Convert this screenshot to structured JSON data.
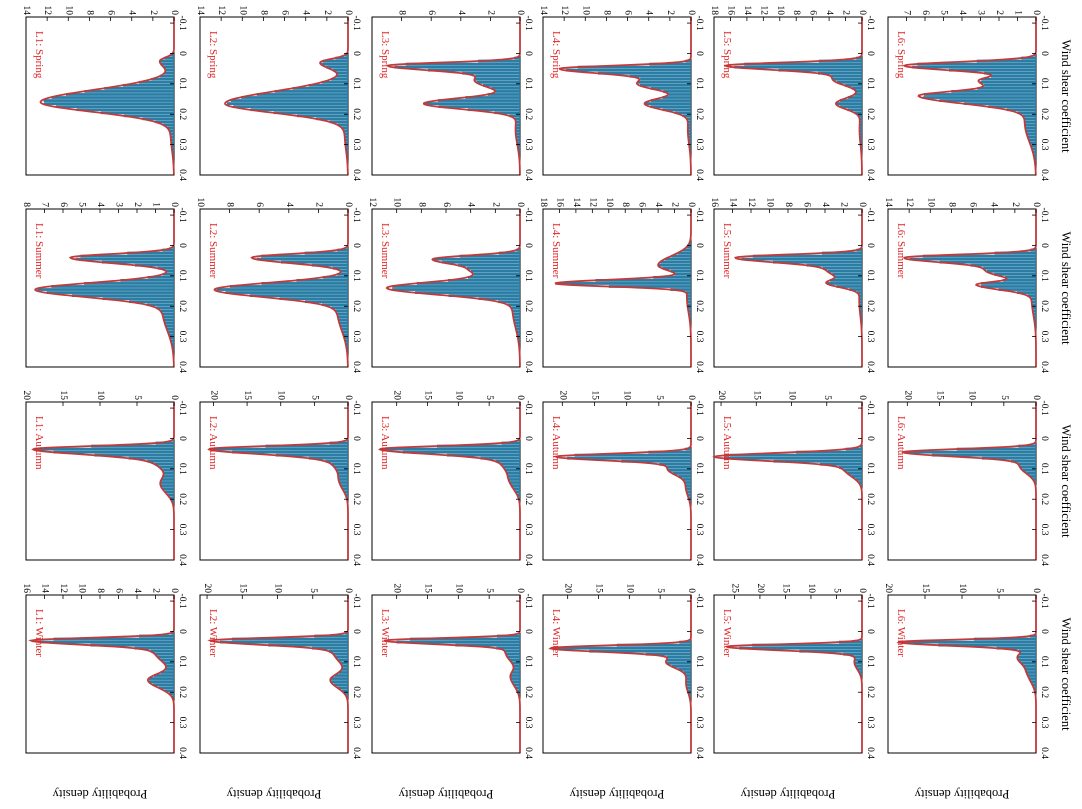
{
  "chart_data": {
    "type": "area",
    "layout": "grid of 6 rows (sites L1-L6) x 4 columns (seasons), figure rotated 90 degrees clockwise",
    "xlabel": "Wind shear coefficient",
    "ylabel": "Probability density",
    "xlim": [
      -0.12,
      0.4
    ],
    "xticks": [
      -0.1,
      0,
      0.1,
      0.2,
      0.3,
      0.4
    ],
    "grid": false,
    "colors": {
      "bars": "#2a7ea6",
      "curve": "#c03b3b",
      "panel_label": "#e02525"
    },
    "panels": [
      {
        "row": 0,
        "col": 0,
        "label": "L1: Spring",
        "ymax": 14,
        "yticks": [
          0,
          2,
          4,
          6,
          8,
          10,
          12,
          14
        ],
        "peaks": [
          {
            "x": 0.16,
            "h": 12.6,
            "wl": 0.04,
            "wr": 0.032
          },
          {
            "x": 0.025,
            "h": 1.3,
            "wl": 0.012,
            "wr": 0.02
          },
          {
            "x": 0.27,
            "h": 0.3,
            "wl": 0.05,
            "wr": 0.05
          }
        ]
      },
      {
        "row": 0,
        "col": 1,
        "label": "L1: Summer",
        "ymax": 8,
        "yticks": [
          0,
          1,
          2,
          3,
          4,
          5,
          6,
          7,
          8
        ],
        "peaks": [
          {
            "x": 0.04,
            "h": 5.6,
            "wl": 0.012,
            "wr": 0.018
          },
          {
            "x": 0.145,
            "h": 7.4,
            "wl": 0.022,
            "wr": 0.025
          },
          {
            "x": 0.22,
            "h": 0.6,
            "wl": 0.04,
            "wr": 0.06
          }
        ]
      },
      {
        "row": 0,
        "col": 2,
        "label": "L1: Autumn",
        "ymax": 20,
        "yticks": [
          0,
          5,
          10,
          15,
          20
        ],
        "peaks": [
          {
            "x": 0.035,
            "h": 18.6,
            "wl": 0.01,
            "wr": 0.016
          },
          {
            "x": 0.065,
            "h": 3,
            "wl": 0.015,
            "wr": 0.03
          },
          {
            "x": 0.15,
            "h": 1.8,
            "wl": 0.025,
            "wr": 0.03
          }
        ]
      },
      {
        "row": 0,
        "col": 3,
        "label": "L1: Winter",
        "ymax": 16,
        "yticks": [
          0,
          2,
          4,
          6,
          8,
          10,
          12,
          14,
          16
        ],
        "peaks": [
          {
            "x": 0.03,
            "h": 15.4,
            "wl": 0.009,
            "wr": 0.014
          },
          {
            "x": 0.07,
            "h": 2,
            "wl": 0.015,
            "wr": 0.03
          },
          {
            "x": 0.16,
            "h": 2.8,
            "wl": 0.02,
            "wr": 0.025
          }
        ]
      },
      {
        "row": 1,
        "col": 0,
        "label": "L2: Spring",
        "ymax": 14,
        "yticks": [
          0,
          2,
          4,
          6,
          8,
          10,
          12,
          14
        ],
        "peaks": [
          {
            "x": 0.165,
            "h": 11.6,
            "wl": 0.04,
            "wr": 0.03
          },
          {
            "x": 0.03,
            "h": 2.6,
            "wl": 0.012,
            "wr": 0.02
          },
          {
            "x": 0.27,
            "h": 0.3,
            "wl": 0.05,
            "wr": 0.05
          }
        ]
      },
      {
        "row": 1,
        "col": 1,
        "label": "L2: Summer",
        "ymax": 10,
        "yticks": [
          0,
          2,
          4,
          6,
          8,
          10
        ],
        "peaks": [
          {
            "x": 0.04,
            "h": 6.5,
            "wl": 0.012,
            "wr": 0.018
          },
          {
            "x": 0.145,
            "h": 8.9,
            "wl": 0.022,
            "wr": 0.025
          },
          {
            "x": 0.22,
            "h": 0.7,
            "wl": 0.04,
            "wr": 0.06
          }
        ]
      },
      {
        "row": 1,
        "col": 2,
        "label": "L2: Autumn",
        "ymax": 22,
        "yticks": [
          0,
          5,
          10,
          15,
          20
        ],
        "peaks": [
          {
            "x": 0.035,
            "h": 20.5,
            "wl": 0.01,
            "wr": 0.016
          },
          {
            "x": 0.07,
            "h": 2.5,
            "wl": 0.015,
            "wr": 0.03
          },
          {
            "x": 0.14,
            "h": 1.2,
            "wl": 0.025,
            "wr": 0.03
          }
        ]
      },
      {
        "row": 1,
        "col": 3,
        "label": "L2: Winter",
        "ymax": 21,
        "yticks": [
          0,
          5,
          10,
          15,
          20
        ],
        "peaks": [
          {
            "x": 0.03,
            "h": 19.5,
            "wl": 0.009,
            "wr": 0.014
          },
          {
            "x": 0.07,
            "h": 2,
            "wl": 0.015,
            "wr": 0.03
          },
          {
            "x": 0.16,
            "h": 2.5,
            "wl": 0.02,
            "wr": 0.025
          }
        ]
      },
      {
        "row": 2,
        "col": 0,
        "label": "L3: Spring",
        "ymax": 10,
        "yticks": [
          0,
          2,
          4,
          6,
          8
        ],
        "peaks": [
          {
            "x": 0.04,
            "h": 8.8,
            "wl": 0.01,
            "wr": 0.016
          },
          {
            "x": 0.09,
            "h": 3,
            "wl": 0.02,
            "wr": 0.025
          },
          {
            "x": 0.165,
            "h": 6.4,
            "wl": 0.018,
            "wr": 0.018
          },
          {
            "x": 0.25,
            "h": 0.3,
            "wl": 0.05,
            "wr": 0.05
          }
        ]
      },
      {
        "row": 2,
        "col": 1,
        "label": "L3: Summer",
        "ymax": 12,
        "yticks": [
          0,
          2,
          4,
          6,
          8,
          10,
          12
        ],
        "peaks": [
          {
            "x": 0.045,
            "h": 7,
            "wl": 0.012,
            "wr": 0.018
          },
          {
            "x": 0.085,
            "h": 3.2,
            "wl": 0.015,
            "wr": 0.02
          },
          {
            "x": 0.14,
            "h": 10.6,
            "wl": 0.02,
            "wr": 0.022
          },
          {
            "x": 0.21,
            "h": 0.6,
            "wl": 0.04,
            "wr": 0.06
          }
        ]
      },
      {
        "row": 2,
        "col": 2,
        "label": "L3: Autumn",
        "ymax": 24,
        "yticks": [
          0,
          5,
          10,
          15,
          20
        ],
        "peaks": [
          {
            "x": 0.035,
            "h": 22.3,
            "wl": 0.01,
            "wr": 0.016
          },
          {
            "x": 0.075,
            "h": 3,
            "wl": 0.02,
            "wr": 0.03
          },
          {
            "x": 0.14,
            "h": 1.5,
            "wl": 0.025,
            "wr": 0.03
          }
        ]
      },
      {
        "row": 2,
        "col": 3,
        "label": "L3: Winter",
        "ymax": 24,
        "yticks": [
          0,
          5,
          10,
          15,
          20
        ],
        "peaks": [
          {
            "x": 0.03,
            "h": 22,
            "wl": 0.008,
            "wr": 0.012
          },
          {
            "x": 0.07,
            "h": 2.3,
            "wl": 0.015,
            "wr": 0.03
          },
          {
            "x": 0.15,
            "h": 1.5,
            "wl": 0.02,
            "wr": 0.03
          }
        ]
      },
      {
        "row": 3,
        "col": 0,
        "label": "L4: Spring",
        "ymax": 14,
        "yticks": [
          0,
          2,
          4,
          6,
          8,
          10,
          12,
          14
        ],
        "peaks": [
          {
            "x": 0.05,
            "h": 12.2,
            "wl": 0.01,
            "wr": 0.016
          },
          {
            "x": 0.1,
            "h": 5,
            "wl": 0.02,
            "wr": 0.02
          },
          {
            "x": 0.165,
            "h": 4.3,
            "wl": 0.018,
            "wr": 0.02
          },
          {
            "x": 0.25,
            "h": 0.3,
            "wl": 0.05,
            "wr": 0.05
          }
        ]
      },
      {
        "row": 3,
        "col": 1,
        "label": "L4: Summer",
        "ymax": 18,
        "yticks": [
          0,
          2,
          4,
          6,
          8,
          10,
          12,
          14,
          16,
          18
        ],
        "peaks": [
          {
            "x": 0.125,
            "h": 16.3,
            "wl": 0.012,
            "wr": 0.01
          },
          {
            "x": 0.065,
            "h": 4,
            "wl": 0.03,
            "wr": 0.02
          },
          {
            "x": 0.17,
            "h": 0.5,
            "wl": 0.03,
            "wr": 0.05
          }
        ]
      },
      {
        "row": 3,
        "col": 2,
        "label": "L4: Autumn",
        "ymax": 23,
        "yticks": [
          0,
          5,
          10,
          15,
          20
        ],
        "peaks": [
          {
            "x": 0.06,
            "h": 20.5,
            "wl": 0.01,
            "wr": 0.012
          },
          {
            "x": 0.1,
            "h": 3.5,
            "wl": 0.02,
            "wr": 0.02
          },
          {
            "x": 0.16,
            "h": 0.8,
            "wl": 0.03,
            "wr": 0.03
          }
        ]
      },
      {
        "row": 3,
        "col": 3,
        "label": "L4: Winter",
        "ymax": 24,
        "yticks": [
          0,
          5,
          10,
          15,
          20
        ],
        "peaks": [
          {
            "x": 0.055,
            "h": 22.5,
            "wl": 0.009,
            "wr": 0.012
          },
          {
            "x": 0.1,
            "h": 4,
            "wl": 0.02,
            "wr": 0.02
          },
          {
            "x": 0.17,
            "h": 0.8,
            "wl": 0.03,
            "wr": 0.03
          }
        ]
      },
      {
        "row": 4,
        "col": 0,
        "label": "L5: Spring",
        "ymax": 18,
        "yticks": [
          0,
          2,
          4,
          6,
          8,
          10,
          12,
          14,
          16,
          18
        ],
        "peaks": [
          {
            "x": 0.04,
            "h": 16.3,
            "wl": 0.01,
            "wr": 0.014
          },
          {
            "x": 0.085,
            "h": 3.5,
            "wl": 0.02,
            "wr": 0.02
          },
          {
            "x": 0.165,
            "h": 3.1,
            "wl": 0.018,
            "wr": 0.018
          },
          {
            "x": 0.25,
            "h": 0.3,
            "wl": 0.05,
            "wr": 0.05
          }
        ]
      },
      {
        "row": 4,
        "col": 1,
        "label": "L5: Summer",
        "ymax": 16,
        "yticks": [
          0,
          2,
          4,
          6,
          8,
          10,
          12,
          14,
          16
        ],
        "peaks": [
          {
            "x": 0.04,
            "h": 13.4,
            "wl": 0.01,
            "wr": 0.016
          },
          {
            "x": 0.085,
            "h": 3.5,
            "wl": 0.02,
            "wr": 0.02
          },
          {
            "x": 0.125,
            "h": 3.3,
            "wl": 0.012,
            "wr": 0.014
          },
          {
            "x": 0.18,
            "h": 0.3,
            "wl": 0.03,
            "wr": 0.05
          }
        ]
      },
      {
        "row": 4,
        "col": 2,
        "label": "L5: Autumn",
        "ymax": 21,
        "yticks": [
          0,
          5,
          10,
          15,
          20
        ],
        "peaks": [
          {
            "x": 0.06,
            "h": 20.6,
            "wl": 0.012,
            "wr": 0.014
          },
          {
            "x": 0.1,
            "h": 2.5,
            "wl": 0.02,
            "wr": 0.025
          }
        ]
      },
      {
        "row": 4,
        "col": 3,
        "label": "L5: Winter",
        "ymax": 29,
        "yticks": [
          0,
          5,
          10,
          15,
          20,
          25
        ],
        "peaks": [
          {
            "x": 0.05,
            "h": 26.5,
            "wl": 0.008,
            "wr": 0.012
          },
          {
            "x": 0.1,
            "h": 1.5,
            "wl": 0.02,
            "wr": 0.025
          }
        ]
      },
      {
        "row": 5,
        "col": 0,
        "label": "L6: Spring",
        "ymax": 8,
        "yticks": [
          0,
          1,
          2,
          3,
          4,
          5,
          6,
          7
        ],
        "peaks": [
          {
            "x": 0.04,
            "h": 7.1,
            "wl": 0.012,
            "wr": 0.016
          },
          {
            "x": 0.09,
            "h": 3,
            "wl": 0.015,
            "wr": 0.02
          },
          {
            "x": 0.14,
            "h": 6.1,
            "wl": 0.016,
            "wr": 0.025
          },
          {
            "x": 0.23,
            "h": 0.6,
            "wl": 0.05,
            "wr": 0.06
          }
        ]
      },
      {
        "row": 5,
        "col": 1,
        "label": "L6: Summer",
        "ymax": 14,
        "yticks": [
          0,
          2,
          4,
          6,
          8,
          10,
          12,
          14
        ],
        "peaks": [
          {
            "x": 0.04,
            "h": 12.1,
            "wl": 0.01,
            "wr": 0.016
          },
          {
            "x": 0.085,
            "h": 4.5,
            "wl": 0.02,
            "wr": 0.02
          },
          {
            "x": 0.13,
            "h": 5.2,
            "wl": 0.01,
            "wr": 0.016
          },
          {
            "x": 0.18,
            "h": 0.4,
            "wl": 0.03,
            "wr": 0.05
          }
        ]
      },
      {
        "row": 5,
        "col": 2,
        "label": "L6: Autumn",
        "ymax": 23,
        "yticks": [
          0,
          5,
          10,
          15,
          20
        ],
        "peaks": [
          {
            "x": 0.045,
            "h": 20.5,
            "wl": 0.01,
            "wr": 0.014
          },
          {
            "x": 0.09,
            "h": 2.5,
            "wl": 0.02,
            "wr": 0.025
          }
        ]
      },
      {
        "row": 5,
        "col": 3,
        "label": "L6: Winter",
        "ymax": 20,
        "yticks": [
          0,
          5,
          10,
          15,
          20
        ],
        "peaks": [
          {
            "x": 0.035,
            "h": 18.5,
            "wl": 0.008,
            "wr": 0.012
          },
          {
            "x": 0.085,
            "h": 2.5,
            "wl": 0.02,
            "wr": 0.025
          },
          {
            "x": 0.14,
            "h": 1,
            "wl": 0.02,
            "wr": 0.03
          }
        ]
      }
    ]
  }
}
